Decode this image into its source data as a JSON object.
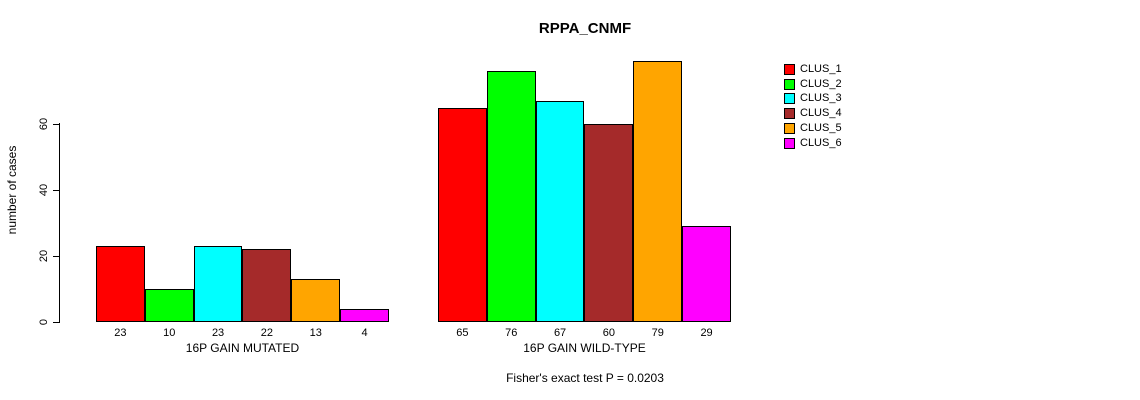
{
  "chart_data": {
    "type": "bar",
    "title": "RPPA_CNMF",
    "ylabel": "number of cases",
    "yticks": [
      0,
      20,
      40,
      60
    ],
    "ylim": [
      0,
      80
    ],
    "grid": false,
    "legend_position": "right",
    "legend_entries": [
      "CLUS_1",
      "CLUS_2",
      "CLUS_3",
      "CLUS_4",
      "CLUS_5",
      "CLUS_6"
    ],
    "colors": [
      "#FF0000",
      "#00FF00",
      "#00FFFF",
      "#A52A2A",
      "#FFA500",
      "#FF00FF"
    ],
    "groups": [
      {
        "label": "16P GAIN MUTATED",
        "values": [
          23,
          10,
          23,
          22,
          13,
          4
        ]
      },
      {
        "label": "16P GAIN WILD-TYPE",
        "values": [
          65,
          76,
          67,
          60,
          79,
          29
        ]
      }
    ],
    "footnote": "Fisher's exact test P = 0.0203"
  }
}
